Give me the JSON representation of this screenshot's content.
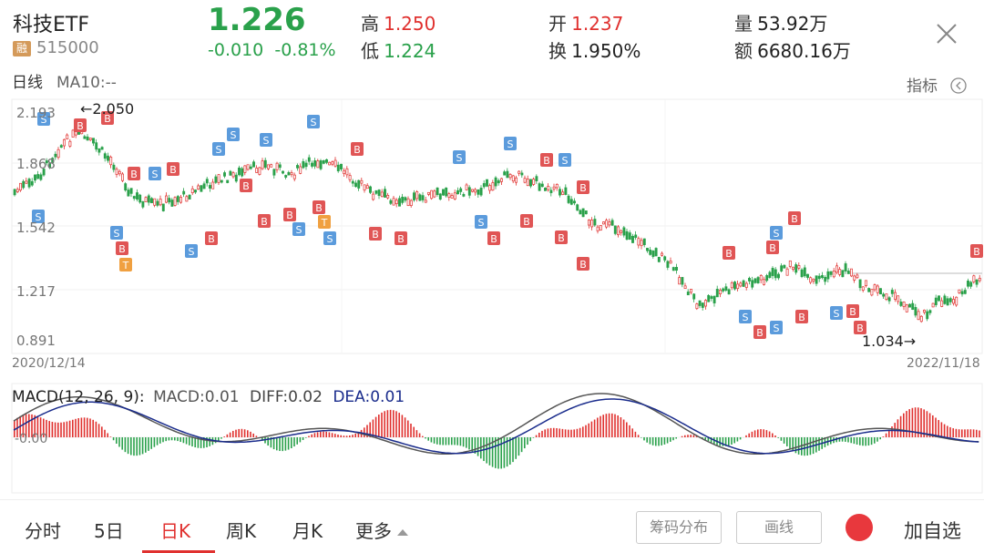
{
  "header": {
    "name": "科技ETF",
    "badge": "融",
    "code": "515000",
    "price": "1.226",
    "change": "-0.010",
    "change_pct": "-0.81%",
    "high_label": "高",
    "high": "1.250",
    "low_label": "低",
    "low": "1.224",
    "open_label": "开",
    "open": "1.237",
    "turnover_label": "换",
    "turnover": "1.950%",
    "volume_label": "量",
    "volume": "53.92万",
    "amount_label": "额",
    "amount": "6680.16万"
  },
  "chart": {
    "period_label": "日线",
    "ma_label": "MA10:--",
    "indicator_label": "指标",
    "price_ticks": [
      "2.193",
      "1.868",
      "1.542",
      "1.217",
      "0.891"
    ],
    "start_date": "2020/12/14",
    "end_date": "2022/11/18",
    "max_annotation": "←2.050",
    "min_annotation": "1.034→",
    "macd_title_prefix": "MACD(12, 26, 9):",
    "macd_value": "MACD:0.01",
    "diff_value": "DIFF:0.02",
    "dea_value": "DEA:0.01",
    "macd_zero_tick": "-0.00"
  },
  "tabs": [
    {
      "label": "分时"
    },
    {
      "label": "5日"
    },
    {
      "label": "日K"
    },
    {
      "label": "周K"
    },
    {
      "label": "月K"
    },
    {
      "label": "更多"
    }
  ],
  "buttons": {
    "chips": "筹码分布",
    "draw": "画线",
    "watch": "加自选"
  },
  "colors": {
    "up": "#e0312f",
    "down": "#2aa14b",
    "buy_marker": "#e05555",
    "sell_marker": "#5b9bdc",
    "t_marker": "#f0a040",
    "dea_line": "#1a2c8c"
  }
}
